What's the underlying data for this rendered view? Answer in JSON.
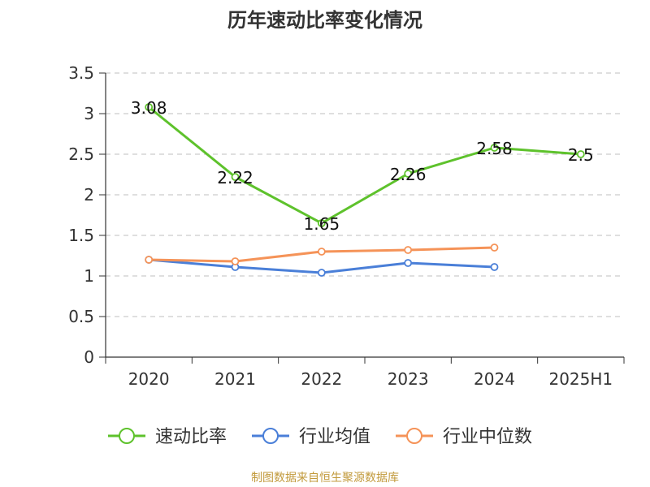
{
  "chart_data": {
    "type": "line",
    "title": "历年速动比率变化情况",
    "categories": [
      "2020",
      "2021",
      "2022",
      "2023",
      "2024",
      "2025H1"
    ],
    "yticks": [
      "0",
      "0.5",
      "1",
      "1.5",
      "2",
      "2.5",
      "3",
      "3.5"
    ],
    "ylim": [
      0,
      3.5
    ],
    "grid": true,
    "legend_position": "bottom",
    "series": [
      {
        "name": "速动比率",
        "color": "#5ec22c",
        "values": [
          3.08,
          2.22,
          1.65,
          2.26,
          2.58,
          2.5
        ],
        "labels": [
          "3.08",
          "2.22",
          "1.65",
          "2.26",
          "2.58",
          "2.5"
        ]
      },
      {
        "name": "行业均值",
        "color": "#4a7fd8",
        "values": [
          1.2,
          1.11,
          1.04,
          1.16,
          1.11,
          null
        ]
      },
      {
        "name": "行业中位数",
        "color": "#f59358",
        "values": [
          1.2,
          1.18,
          1.3,
          1.32,
          1.35,
          null
        ]
      }
    ]
  },
  "source_text": "制图数据来自恒生聚源数据库"
}
